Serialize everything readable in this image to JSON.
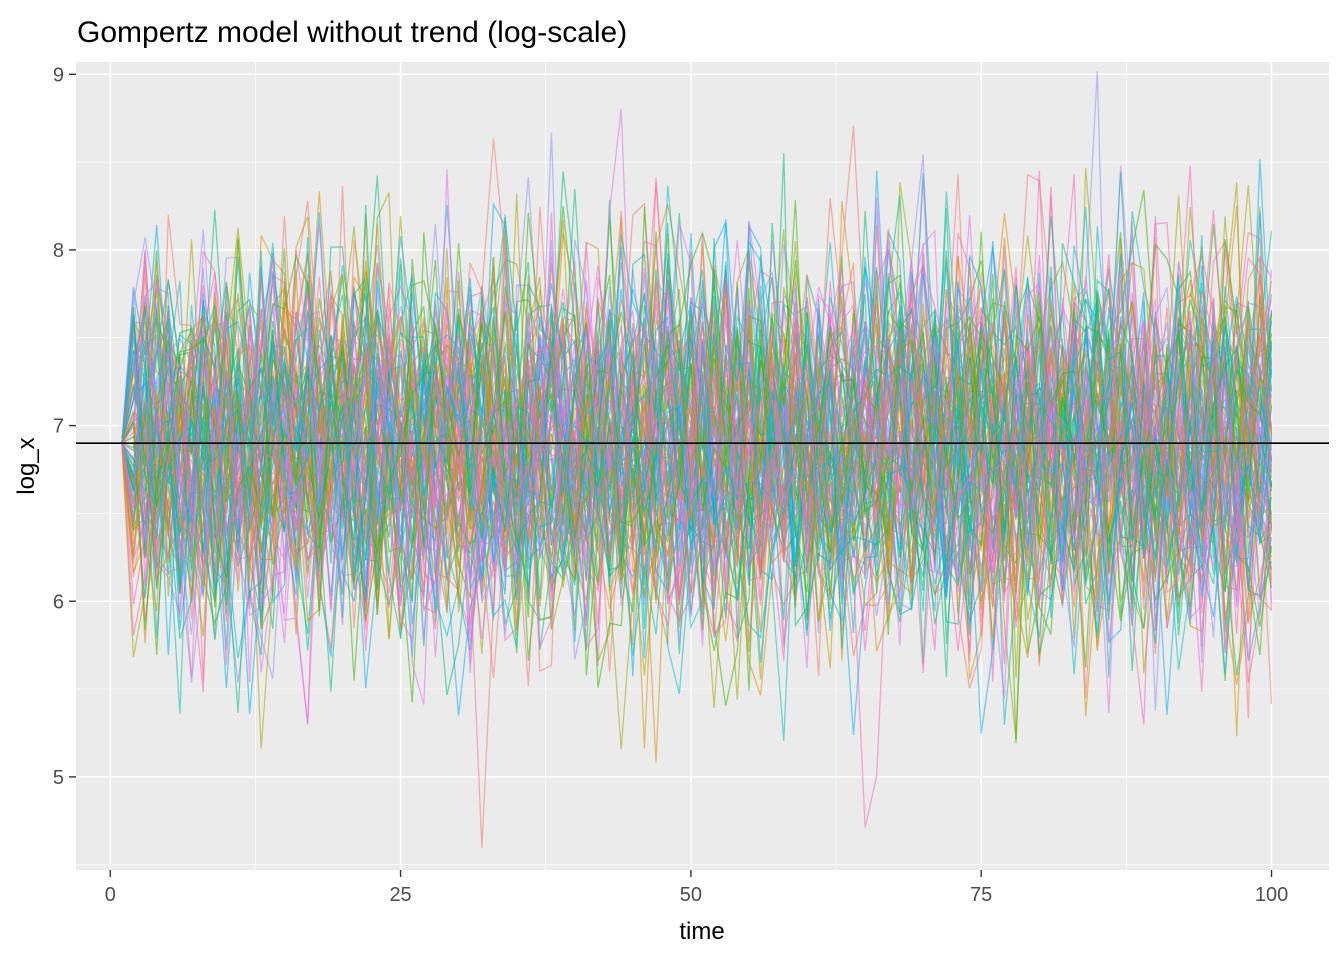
{
  "chart_data": {
    "type": "line",
    "title": "Gompertz model without trend (log-scale)",
    "xlabel": "time",
    "ylabel": "log_x",
    "xlim": [
      -2.95,
      104.95
    ],
    "ylim": [
      4.47,
      9.07
    ],
    "x_ticks": [
      0,
      25,
      50,
      75,
      100
    ],
    "y_ticks": [
      5,
      6,
      7,
      8,
      9
    ],
    "grid": true,
    "legend": "none",
    "n_series": 100,
    "time_range": [
      1,
      100
    ],
    "reference_line": {
      "y": 6.9,
      "color": "#000000"
    },
    "background_color": "#EBEBEB",
    "grid_color": "#FFFFFF",
    "series_colors": [
      "#F8766D",
      "#D89000",
      "#A3A500",
      "#39B600",
      "#00BF7D",
      "#00BFC4",
      "#00B0F6",
      "#9590FF",
      "#E76BF3",
      "#FF62BC"
    ]
  }
}
